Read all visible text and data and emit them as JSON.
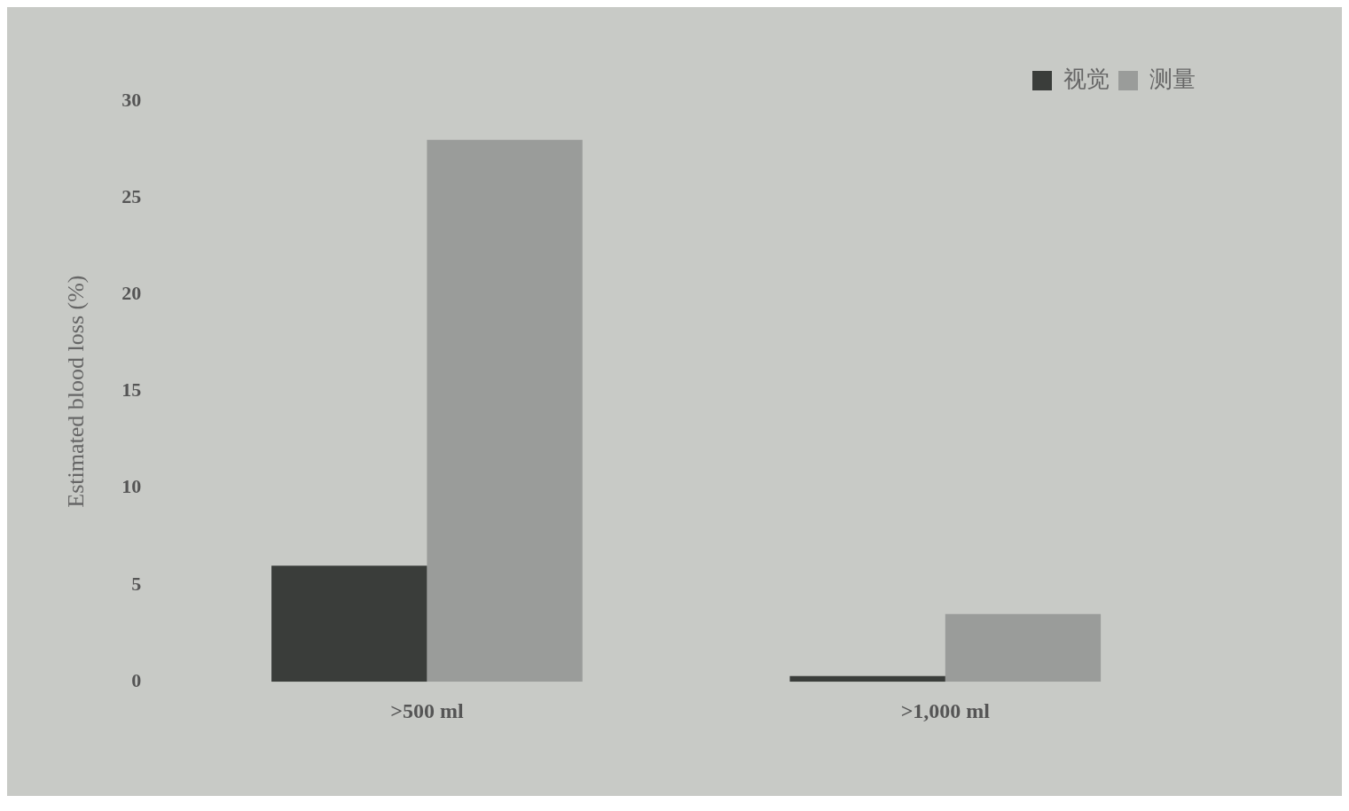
{
  "chart_data": {
    "type": "bar",
    "ylabel": "Estimated blood loss (%)",
    "categories": [
      ">500 ml",
      ">1,000 ml"
    ],
    "series": [
      {
        "name": "视觉",
        "color": "#3a3d3a",
        "values": [
          6,
          0.3
        ]
      },
      {
        "name": "测量",
        "color": "#9a9c9a",
        "values": [
          28,
          3.5
        ]
      }
    ],
    "ylim": [
      0,
      30
    ],
    "yticks": [
      0,
      5,
      10,
      15,
      20,
      25,
      30
    ],
    "grid": false,
    "legend": "top right"
  }
}
